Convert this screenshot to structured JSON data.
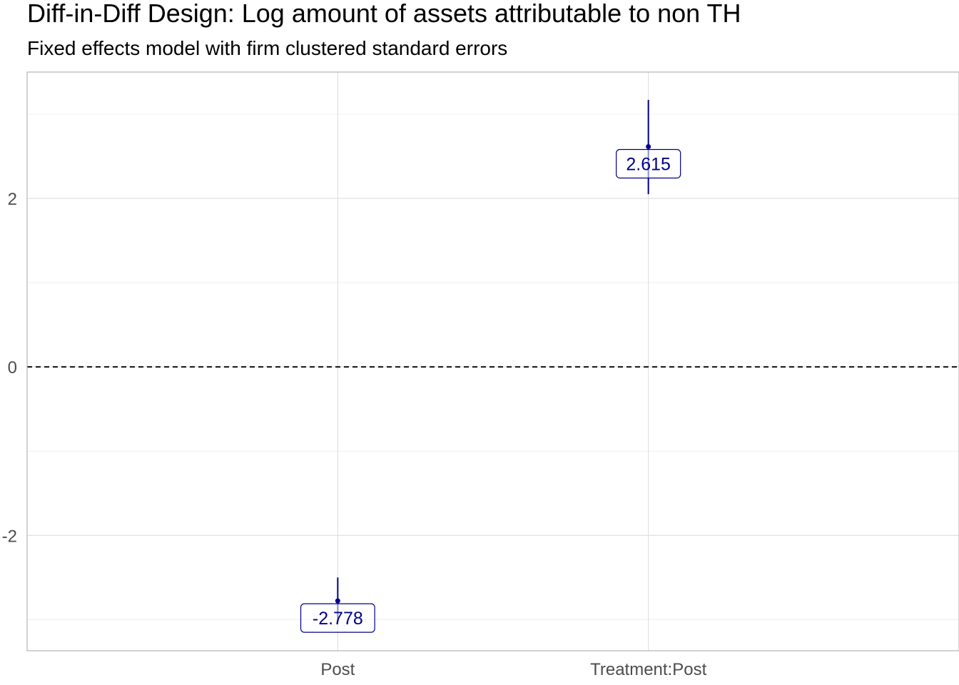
{
  "chart_data": {
    "type": "scatter",
    "title": "Diff-in-Diff Design: Log amount of assets attributable to non TH",
    "subtitle": "Fixed effects model with firm clustered standard errors",
    "xlabel": "",
    "ylabel": "",
    "categories": [
      "Post",
      "Treatment:Post"
    ],
    "estimates": [
      {
        "term": "Post",
        "estimate": -2.778,
        "ci_low": -3.03,
        "ci_high": -2.5,
        "label": "-2.778"
      },
      {
        "term": "Treatment:Post",
        "estimate": 2.615,
        "ci_low": 2.05,
        "ci_high": 3.17,
        "label": "2.615"
      }
    ],
    "ylim": [
      -3.37,
      3.5
    ],
    "y_ticks": [
      -2,
      0,
      2
    ],
    "y_tick_labels": [
      "-2",
      "0",
      "2"
    ],
    "reference_line": {
      "y": 0,
      "style": "dashed"
    },
    "grid": true,
    "legend": "none",
    "colors": {
      "point": "#00008b",
      "reference_line": "#000000",
      "label_border": "#00008b"
    }
  }
}
